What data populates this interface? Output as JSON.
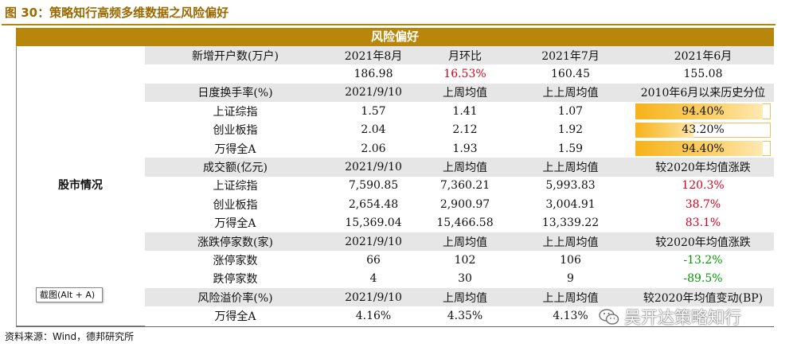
{
  "figure": {
    "title": "图 30：策略知行高频多维数据之风险偏好"
  },
  "banner": "风险偏好",
  "section_label": "股市情况",
  "rows": [
    {
      "type": "hdr",
      "cells": [
        "新增开户数(万户)",
        "2021年8月",
        "月环比",
        "2021年7月",
        "2021年6月"
      ]
    },
    {
      "type": "data",
      "cells": [
        "",
        "186.98",
        "16.53%",
        "160.45",
        "155.08"
      ],
      "color": [
        "",
        "",
        "red",
        "",
        ""
      ]
    },
    {
      "type": "hdr",
      "cells": [
        "日度换手率(%)",
        "2021/9/10",
        "上周均值",
        "上上周均值",
        "2010年6月以来历史分位"
      ]
    },
    {
      "type": "data",
      "cells": [
        "上证综指",
        "1.57",
        "1.41",
        "1.07",
        "94.40%"
      ],
      "bar": 0.944
    },
    {
      "type": "data",
      "cells": [
        "创业板指",
        "2.04",
        "2.12",
        "1.92",
        "43.20%"
      ],
      "bar": 0.432
    },
    {
      "type": "data",
      "cells": [
        "万得全A",
        "2.06",
        "1.93",
        "1.59",
        "94.40%"
      ],
      "bar": 0.944
    },
    {
      "type": "hdr",
      "cells": [
        "成交额(亿元)",
        "2021/9/10",
        "上周均值",
        "上上周均值",
        "较2020年均值涨跌"
      ]
    },
    {
      "type": "data",
      "cells": [
        "上证综指",
        "7,590.85",
        "7,360.21",
        "5,993.83",
        "120.3%"
      ],
      "color": [
        "",
        "",
        "",
        "",
        "red"
      ]
    },
    {
      "type": "data",
      "cells": [
        "创业板指",
        "2,654.48",
        "2,900.97",
        "3,004.91",
        "38.7%"
      ],
      "color": [
        "",
        "",
        "",
        "",
        "red"
      ]
    },
    {
      "type": "data",
      "cells": [
        "万得全A",
        "15,369.04",
        "15,466.58",
        "13,339.22",
        "83.1%"
      ],
      "color": [
        "",
        "",
        "",
        "",
        "red"
      ]
    },
    {
      "type": "hdr",
      "cells": [
        "涨跌停家数(家)",
        "2021/9/10",
        "上周均值",
        "上上周均值",
        "较2020年均值涨跌"
      ]
    },
    {
      "type": "data",
      "cells": [
        "涨停家数",
        "66",
        "102",
        "106",
        "-13.2%"
      ],
      "color": [
        "",
        "",
        "",
        "",
        "green"
      ]
    },
    {
      "type": "data",
      "cells": [
        "跌停家数",
        "4",
        "30",
        "9",
        "-89.5%"
      ],
      "color": [
        "",
        "",
        "",
        "",
        "green"
      ]
    },
    {
      "type": "hdr",
      "cells": [
        "风险溢价率(%)",
        "2021/9/10",
        "上周均值",
        "上上周均值",
        "较2020年均值变动(BP)"
      ]
    },
    {
      "type": "data",
      "cells": [
        "万得全A",
        "4.16%",
        "4.35%",
        "4.13%",
        ""
      ]
    }
  ],
  "source": "资料来源：Wind，德邦研究所",
  "tooltip": "截图(Alt + A)",
  "watermark": "吴开达策略知行"
}
